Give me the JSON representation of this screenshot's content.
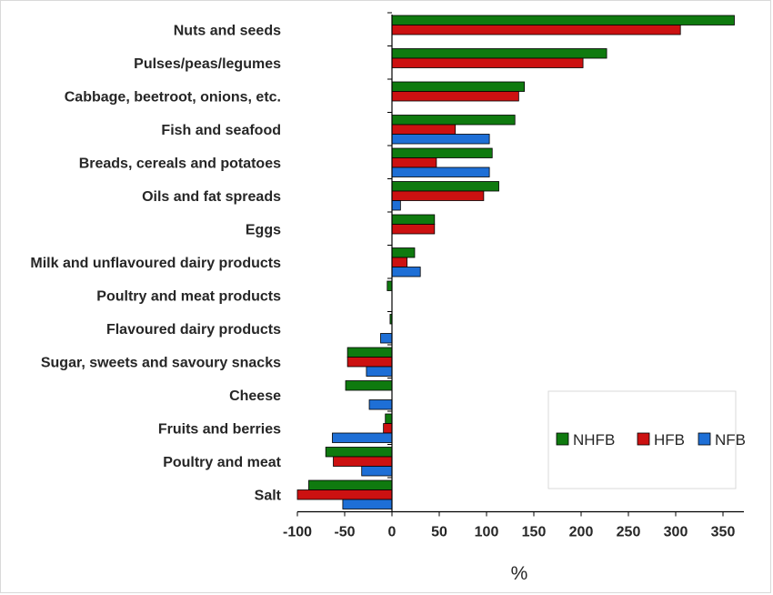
{
  "chart_data": {
    "type": "bar",
    "orientation": "horizontal",
    "categories": [
      "Nuts and seeds",
      "Pulses/peas/legumes",
      "Cabbage, beetroot, onions, etc.",
      "Fish and seafood",
      "Breads, cereals and potatoes",
      "Oils and fat spreads",
      "Eggs",
      "Milk and unflavoured dairy products",
      "Poultry and meat products",
      "Flavoured dairy products",
      "Sugar, sweets and savoury snacks",
      "Cheese",
      "Fruits and berries",
      "Poultry and meat",
      "Salt"
    ],
    "series": [
      {
        "name": "NHFB",
        "color": "#0f7a0f",
        "values": [
          362,
          227,
          140,
          130,
          106,
          113,
          45,
          24,
          -5,
          -2,
          -47,
          -49,
          -7,
          -70,
          -88
        ]
      },
      {
        "name": "HFB",
        "color": "#cc1111",
        "values": [
          305,
          202,
          134,
          67,
          47,
          97,
          45,
          16,
          0,
          0,
          -47,
          0,
          -9,
          -62,
          -100
        ]
      },
      {
        "name": "NFB",
        "color": "#1e6fd6",
        "values": [
          null,
          null,
          null,
          103,
          103,
          9,
          null,
          30,
          0,
          -12,
          -27,
          -24,
          -63,
          -32,
          -52
        ]
      }
    ],
    "xlabel": "%",
    "xlim": [
      -100,
      370
    ],
    "xticks": [
      "-100",
      "-50",
      "0",
      "50",
      "100",
      "150",
      "200",
      "250",
      "300",
      "350"
    ],
    "legend_position": "right-lower",
    "grid": false
  }
}
